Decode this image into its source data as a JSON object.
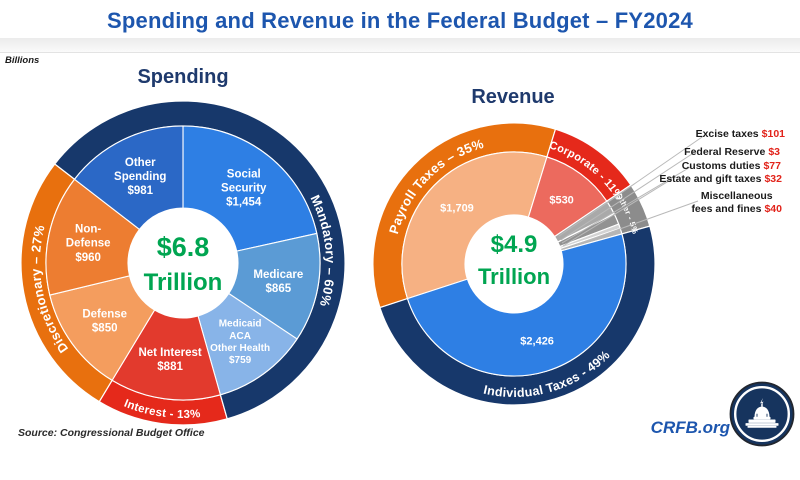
{
  "title": "Spending and Revenue in the Federal Budget – FY2024",
  "units_note": "Billions",
  "source": "Source: Congressional Budget Office",
  "branding": {
    "site": "CRFB.org",
    "logo": "capitol-icon"
  },
  "colors": {
    "title_blue": "#1d56ae",
    "section_header_navy": "#1f3a6d",
    "center_green": "#00a551",
    "outer_navy": "#17386b",
    "outer_orange": "#e8700e",
    "outer_red": "#e5291b",
    "other_gray": "#8c8c8c",
    "callout_value_red": "#e2231a"
  },
  "chart_data": [
    {
      "type": "pie",
      "variant": "double-ring-donut",
      "title": "Spending",
      "center": {
        "value": "$6.8",
        "unit": "Trillion"
      },
      "segments": [
        {
          "name": "Social Security",
          "value": 1454,
          "display": "$1,454",
          "label_lines": [
            "Social",
            "Security",
            "$1,454"
          ],
          "color": "#2e7fe4",
          "group": "Mandatory"
        },
        {
          "name": "Medicare",
          "value": 865,
          "display": "$865",
          "label_lines": [
            "Medicare",
            "$865"
          ],
          "color": "#5b9bd5",
          "group": "Mandatory"
        },
        {
          "name": "Medicaid ACA Other Health",
          "value": 759,
          "display": "$759",
          "label_lines": [
            "Medicaid",
            "ACA",
            "Other Health",
            "$759"
          ],
          "color": "#88b4e8",
          "group": "Mandatory"
        },
        {
          "name": "Net Interest",
          "value": 881,
          "display": "$881",
          "label_lines": [
            "Net Interest",
            "$881"
          ],
          "color": "#e23a2d",
          "group": "Interest"
        },
        {
          "name": "Defense",
          "value": 850,
          "display": "$850",
          "label_lines": [
            "Defense",
            "$850"
          ],
          "color": "#f49d5e",
          "group": "Discretionary"
        },
        {
          "name": "Non-Defense",
          "value": 960,
          "display": "$960",
          "label_lines": [
            "Non-",
            "Defense",
            "$960"
          ],
          "color": "#ed7d31",
          "group": "Discretionary"
        },
        {
          "name": "Other Spending",
          "value": 981,
          "display": "$981",
          "label_lines": [
            "Other",
            "Spending",
            "$981"
          ],
          "color": "#2b68c6",
          "group": "Mandatory"
        }
      ],
      "outer_ring": [
        {
          "label": "Interest - 13%",
          "value": 881,
          "color": "#e5291b"
        },
        {
          "label": "Discretionary – 27%",
          "value": 1810,
          "color": "#e8700e"
        },
        {
          "label": "Mandatory – 60%",
          "value": 4059,
          "color": "#17386b"
        }
      ],
      "outer_ring_align": "Net Interest"
    },
    {
      "type": "pie",
      "variant": "double-ring-donut",
      "title": "Revenue",
      "center": {
        "value": "$4.9",
        "unit": "Trillion"
      },
      "segments": [
        {
          "name": "Payroll Taxes",
          "value": 1709,
          "display": "$1,709",
          "label_lines": [
            "$1,709"
          ],
          "color": "#f6b183",
          "group": "Payroll Taxes"
        },
        {
          "name": "Corporate",
          "value": 530,
          "display": "$530",
          "label_lines": [
            "$530"
          ],
          "color": "#ec6a5e",
          "group": "Corporate"
        },
        {
          "name": "Excise taxes",
          "value": 101,
          "display": "$101",
          "label_lines": [],
          "color": "#a9a9a9",
          "group": "Other"
        },
        {
          "name": "Federal Reserve",
          "value": 3,
          "display": "$3",
          "label_lines": [],
          "color": "#e0e0e0",
          "group": "Other"
        },
        {
          "name": "Customs duties",
          "value": 77,
          "display": "$77",
          "label_lines": [],
          "color": "#929292",
          "group": "Other"
        },
        {
          "name": "Estate and gift taxes",
          "value": 32,
          "display": "$32",
          "label_lines": [],
          "color": "#d3d3d3",
          "group": "Other"
        },
        {
          "name": "Miscellaneous fees and fines",
          "value": 40,
          "display": "$40",
          "label_lines": [],
          "color": "#b5b5b5",
          "group": "Other"
        },
        {
          "name": "Individual Taxes",
          "value": 2426,
          "display": "$2,426",
          "label_lines": [
            "$2,426"
          ],
          "color": "#2e7fe4",
          "group": "Individual Taxes"
        }
      ],
      "outer_ring": [
        {
          "label": "Payroll Taxes – 35%",
          "value": 1709,
          "color": "#e8700e"
        },
        {
          "label": "Corporate - 11%",
          "value": 530,
          "color": "#e5291b"
        },
        {
          "label": "Other - 5%",
          "value": 253,
          "color": "#8c8c8c"
        },
        {
          "label": "Individual Taxes - 49%",
          "value": 2426,
          "color": "#17386b"
        }
      ],
      "outer_ring_align": "Payroll Taxes",
      "callouts": [
        {
          "label": "Excise taxes",
          "value": "$101"
        },
        {
          "label": "Federal Reserve",
          "value": "$3"
        },
        {
          "label": "Customs duties",
          "value": "$77"
        },
        {
          "label": "Estate and gift taxes",
          "value": "$32"
        },
        {
          "label": "Miscellaneous fees and fines",
          "value": "$40",
          "lines": [
            "Miscellaneous",
            "fees and fines"
          ]
        }
      ]
    }
  ]
}
